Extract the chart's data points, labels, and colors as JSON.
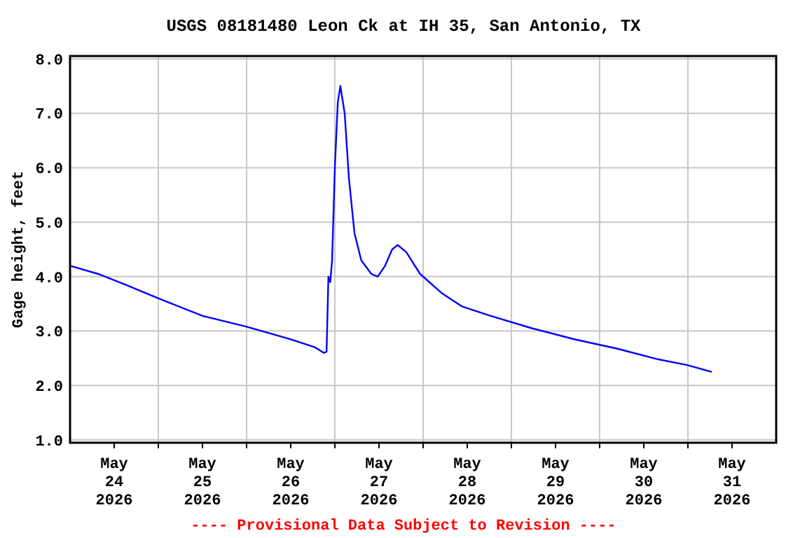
{
  "chart_data": {
    "type": "line",
    "title": "USGS 08181480 Leon Ck at IH 35, San Antonio, TX",
    "ylabel": "Gage height, feet",
    "annotations": [
      "---- Provisional Data Subject to Revision ----"
    ],
    "x": [
      "2026-05-24T00:00",
      "2026-05-24T07:36",
      "2026-05-24T15:12",
      "2026-05-25T00:00",
      "2026-05-25T12:00",
      "2026-05-26T00:00",
      "2026-05-26T12:00",
      "2026-05-26T18:40",
      "2026-05-26T21:00",
      "2026-05-26T21:45",
      "2026-05-26T22:15",
      "2026-05-26T22:45",
      "2026-05-26T23:15",
      "2026-05-27T00:00",
      "2026-05-27T00:48",
      "2026-05-27T01:30",
      "2026-05-27T02:40",
      "2026-05-27T03:50",
      "2026-05-27T05:20",
      "2026-05-27T07:10",
      "2026-05-27T09:55",
      "2026-05-27T11:40",
      "2026-05-27T13:40",
      "2026-05-27T15:35",
      "2026-05-27T17:05",
      "2026-05-27T19:25",
      "2026-05-27T23:10",
      "2026-05-28T05:00",
      "2026-05-28T10:40",
      "2026-05-28T18:20",
      "2026-05-29T05:40",
      "2026-05-29T17:05",
      "2026-05-30T04:35",
      "2026-05-30T16:00",
      "2026-05-30T23:35",
      "2026-05-31T06:30"
    ],
    "series": [
      {
        "color": "#0000ff",
        "values": [
          4.2,
          4.05,
          3.85,
          3.6,
          3.28,
          3.08,
          2.85,
          2.7,
          2.6,
          2.62,
          4.0,
          3.9,
          4.3,
          6.0,
          7.2,
          7.5,
          7.0,
          5.8,
          4.8,
          4.3,
          4.05,
          4.0,
          4.2,
          4.5,
          4.58,
          4.45,
          4.05,
          3.7,
          3.45,
          3.28,
          3.05,
          2.85,
          2.68,
          2.48,
          2.38,
          2.25
        ]
      }
    ],
    "xlim": [
      "2026-05-24T00:00",
      "2026-06-01T00:00"
    ],
    "xticks": [
      {
        "value": "2026-05-24T12:00",
        "label": "May\n24\n2026"
      },
      {
        "value": "2026-05-25T12:00",
        "label": "May\n25\n2026"
      },
      {
        "value": "2026-05-26T12:00",
        "label": "May\n26\n2026"
      },
      {
        "value": "2026-05-27T12:00",
        "label": "May\n27\n2026"
      },
      {
        "value": "2026-05-28T12:00",
        "label": "May\n28\n2026"
      },
      {
        "value": "2026-05-29T12:00",
        "label": "May\n29\n2026"
      },
      {
        "value": "2026-05-30T12:00",
        "label": "May\n30\n2026"
      },
      {
        "value": "2026-05-31T12:00",
        "label": "May\n31\n2026"
      },
      {
        "value": "2026-05-25T00:00",
        "label": null
      },
      {
        "value": "2026-05-26T00:00",
        "label": null
      },
      {
        "value": "2026-05-27T00:00",
        "label": null
      },
      {
        "value": "2026-05-28T00:00",
        "label": null
      },
      {
        "value": "2026-05-29T00:00",
        "label": null
      },
      {
        "value": "2026-05-30T00:00",
        "label": null
      },
      {
        "value": "2026-05-31T00:00",
        "label": null
      }
    ],
    "ylim": [
      0.95,
      8.05
    ],
    "yticks": [
      {
        "value": 1,
        "label": "1.0"
      },
      {
        "value": 2,
        "label": "2.0"
      },
      {
        "value": 3,
        "label": "3.0"
      },
      {
        "value": 4,
        "label": "4.0"
      },
      {
        "value": 5,
        "label": "5.0"
      },
      {
        "value": 6,
        "label": "6.0"
      },
      {
        "value": 7,
        "label": "7.0"
      },
      {
        "value": 8,
        "label": "8.0"
      }
    ],
    "grid": true,
    "marker": "none",
    "line_style": "solid"
  }
}
